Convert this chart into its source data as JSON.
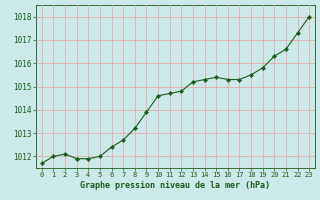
{
  "x": [
    0,
    1,
    2,
    3,
    4,
    5,
    6,
    7,
    8,
    9,
    10,
    11,
    12,
    13,
    14,
    15,
    16,
    17,
    18,
    19,
    20,
    21,
    22,
    23
  ],
  "y": [
    1011.7,
    1012.0,
    1012.1,
    1011.9,
    1011.9,
    1012.0,
    1012.4,
    1012.7,
    1013.2,
    1013.9,
    1014.6,
    1014.7,
    1014.8,
    1015.2,
    1015.3,
    1015.4,
    1015.3,
    1015.3,
    1015.5,
    1015.8,
    1016.3,
    1016.6,
    1017.3,
    1018.0
  ],
  "line_color": "#1a5c1a",
  "marker": "D",
  "marker_size": 2.2,
  "bg_color": "#cce8e8",
  "grid_color": "#e8a0a0",
  "xlabel": "Graphe pression niveau de la mer (hPa)",
  "xlabel_color": "#1a5c1a",
  "tick_color": "#1a5c1a",
  "ylim": [
    1011.5,
    1018.5
  ],
  "yticks": [
    1012,
    1013,
    1014,
    1015,
    1016,
    1017,
    1018
  ],
  "xticks": [
    0,
    1,
    2,
    3,
    4,
    5,
    6,
    7,
    8,
    9,
    10,
    11,
    12,
    13,
    14,
    15,
    16,
    17,
    18,
    19,
    20,
    21,
    22,
    23
  ]
}
